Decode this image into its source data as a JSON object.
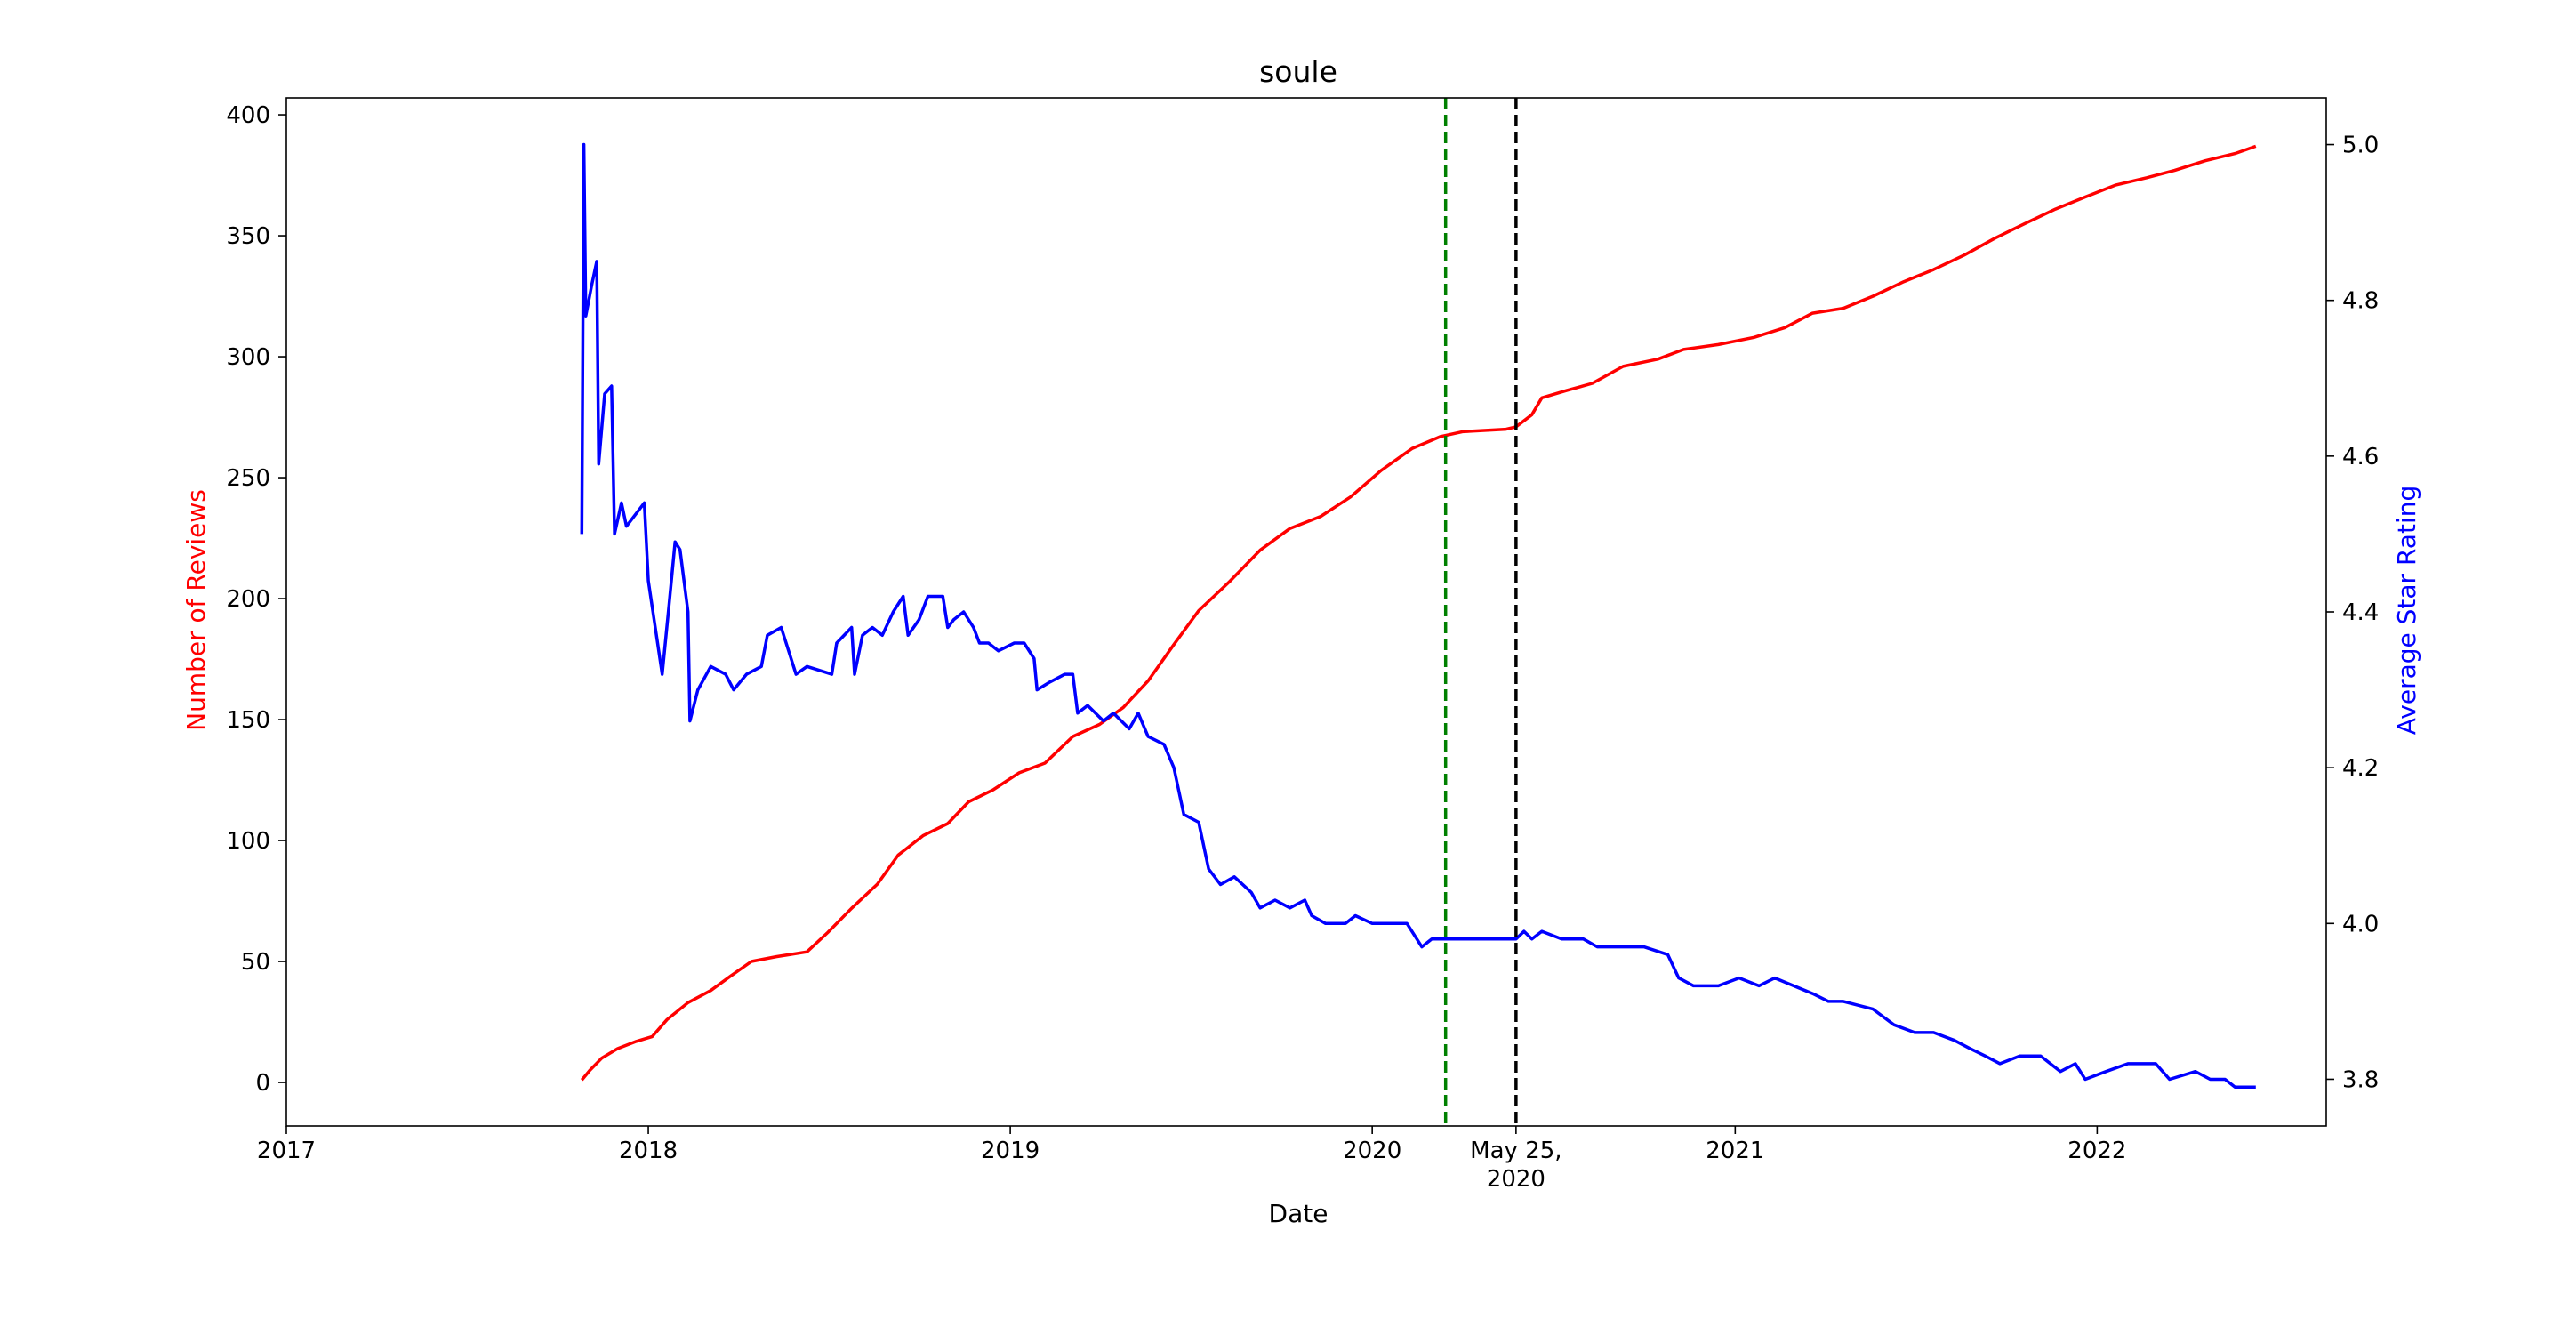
{
  "chart_data": {
    "type": "line",
    "title": "soule",
    "xlabel": "Date",
    "ylabel_left": "Number of Reviews",
    "ylabel_right": "Average Star Rating",
    "xlim": [
      "2017-01-01",
      "2022-08-20"
    ],
    "ylim_left": [
      -18,
      407
    ],
    "ylim_right": [
      3.74,
      5.06
    ],
    "x_ticks": [
      {
        "date": "2017-01-01",
        "label": "2017"
      },
      {
        "date": "2018-01-01",
        "label": "2018"
      },
      {
        "date": "2019-01-01",
        "label": "2019"
      },
      {
        "date": "2020-01-01",
        "label": "2020"
      },
      {
        "date": "2020-05-25",
        "label": "May 25,\n2020"
      },
      {
        "date": "2021-01-01",
        "label": "2021"
      },
      {
        "date": "2022-01-01",
        "label": "2022"
      }
    ],
    "y_ticks_left": [
      0,
      50,
      100,
      150,
      200,
      250,
      300,
      350,
      400
    ],
    "y_ticks_right": [
      3.8,
      4.0,
      4.2,
      4.4,
      4.6,
      4.8,
      5.0
    ],
    "grid": false,
    "legend": "none",
    "vlines": [
      {
        "date": "2020-03-15",
        "color": "#008000",
        "style": "dashed"
      },
      {
        "date": "2020-05-25",
        "color": "#000000",
        "style": "dashed"
      }
    ],
    "series": [
      {
        "axis": "left",
        "color": "#ff0000",
        "points": [
          [
            "2017-10-26",
            1
          ],
          [
            "2017-11-03",
            5
          ],
          [
            "2017-11-15",
            10
          ],
          [
            "2017-12-01",
            14
          ],
          [
            "2017-12-20",
            17
          ],
          [
            "2018-01-05",
            19
          ],
          [
            "2018-01-20",
            26
          ],
          [
            "2018-02-10",
            33
          ],
          [
            "2018-03-05",
            38
          ],
          [
            "2018-03-25",
            44
          ],
          [
            "2018-04-15",
            50
          ],
          [
            "2018-05-10",
            52
          ],
          [
            "2018-06-10",
            54
          ],
          [
            "2018-07-01",
            62
          ],
          [
            "2018-07-25",
            72
          ],
          [
            "2018-08-20",
            82
          ],
          [
            "2018-09-10",
            94
          ],
          [
            "2018-10-05",
            102
          ],
          [
            "2018-10-30",
            107
          ],
          [
            "2018-11-20",
            116
          ],
          [
            "2018-12-15",
            121
          ],
          [
            "2019-01-10",
            128
          ],
          [
            "2019-02-05",
            132
          ],
          [
            "2019-03-05",
            143
          ],
          [
            "2019-04-01",
            148
          ],
          [
            "2019-04-25",
            155
          ],
          [
            "2019-05-20",
            166
          ],
          [
            "2019-06-15",
            181
          ],
          [
            "2019-07-10",
            195
          ],
          [
            "2019-08-10",
            207
          ],
          [
            "2019-09-10",
            220
          ],
          [
            "2019-10-10",
            229
          ],
          [
            "2019-11-10",
            234
          ],
          [
            "2019-12-10",
            242
          ],
          [
            "2020-01-10",
            253
          ],
          [
            "2020-02-10",
            262
          ],
          [
            "2020-03-10",
            267
          ],
          [
            "2020-04-01",
            269
          ],
          [
            "2020-05-15",
            270
          ],
          [
            "2020-05-25",
            271
          ],
          [
            "2020-06-10",
            276
          ],
          [
            "2020-06-20",
            283
          ],
          [
            "2020-07-15",
            286
          ],
          [
            "2020-08-10",
            289
          ],
          [
            "2020-09-10",
            296
          ],
          [
            "2020-10-15",
            299
          ],
          [
            "2020-11-10",
            303
          ],
          [
            "2020-12-15",
            305
          ],
          [
            "2021-01-20",
            308
          ],
          [
            "2021-02-20",
            312
          ],
          [
            "2021-03-20",
            318
          ],
          [
            "2021-04-20",
            320
          ],
          [
            "2021-05-20",
            325
          ],
          [
            "2021-06-20",
            331
          ],
          [
            "2021-07-20",
            336
          ],
          [
            "2021-08-20",
            342
          ],
          [
            "2021-09-20",
            349
          ],
          [
            "2021-10-20",
            355
          ],
          [
            "2021-11-20",
            361
          ],
          [
            "2021-12-20",
            366
          ],
          [
            "2022-01-20",
            371
          ],
          [
            "2022-02-20",
            374
          ],
          [
            "2022-03-20",
            377
          ],
          [
            "2022-04-20",
            381
          ],
          [
            "2022-05-20",
            384
          ],
          [
            "2022-06-10",
            387
          ]
        ]
      },
      {
        "axis": "right",
        "color": "#0000ff",
        "points": [
          [
            "2017-10-26",
            4.5
          ],
          [
            "2017-10-28",
            5.0
          ],
          [
            "2017-10-30",
            4.78
          ],
          [
            "2017-11-05",
            4.82
          ],
          [
            "2017-11-10",
            4.85
          ],
          [
            "2017-11-12",
            4.59
          ],
          [
            "2017-11-18",
            4.68
          ],
          [
            "2017-11-25",
            4.69
          ],
          [
            "2017-11-28",
            4.5
          ],
          [
            "2017-12-05",
            4.54
          ],
          [
            "2017-12-10",
            4.51
          ],
          [
            "2017-12-28",
            4.54
          ],
          [
            "2018-01-01",
            4.44
          ],
          [
            "2018-01-15",
            4.32
          ],
          [
            "2018-01-22",
            4.41
          ],
          [
            "2018-01-28",
            4.49
          ],
          [
            "2018-02-02",
            4.48
          ],
          [
            "2018-02-10",
            4.4
          ],
          [
            "2018-02-12",
            4.26
          ],
          [
            "2018-02-20",
            4.3
          ],
          [
            "2018-03-05",
            4.33
          ],
          [
            "2018-03-20",
            4.32
          ],
          [
            "2018-03-28",
            4.3
          ],
          [
            "2018-04-10",
            4.32
          ],
          [
            "2018-04-25",
            4.33
          ],
          [
            "2018-05-01",
            4.37
          ],
          [
            "2018-05-15",
            4.38
          ],
          [
            "2018-05-30",
            4.32
          ],
          [
            "2018-06-10",
            4.33
          ],
          [
            "2018-07-05",
            4.32
          ],
          [
            "2018-07-10",
            4.36
          ],
          [
            "2018-07-25",
            4.38
          ],
          [
            "2018-07-28",
            4.32
          ],
          [
            "2018-08-05",
            4.37
          ],
          [
            "2018-08-15",
            4.38
          ],
          [
            "2018-08-25",
            4.37
          ],
          [
            "2018-09-05",
            4.4
          ],
          [
            "2018-09-15",
            4.42
          ],
          [
            "2018-09-20",
            4.37
          ],
          [
            "2018-10-01",
            4.39
          ],
          [
            "2018-10-10",
            4.42
          ],
          [
            "2018-10-25",
            4.42
          ],
          [
            "2018-10-30",
            4.38
          ],
          [
            "2018-11-05",
            4.39
          ],
          [
            "2018-11-15",
            4.4
          ],
          [
            "2018-11-25",
            4.38
          ],
          [
            "2018-12-01",
            4.36
          ],
          [
            "2018-12-10",
            4.36
          ],
          [
            "2018-12-20",
            4.35
          ],
          [
            "2019-01-05",
            4.36
          ],
          [
            "2019-01-15",
            4.36
          ],
          [
            "2019-01-25",
            4.34
          ],
          [
            "2019-01-28",
            4.3
          ],
          [
            "2019-02-10",
            4.31
          ],
          [
            "2019-02-25",
            4.32
          ],
          [
            "2019-03-05",
            4.32
          ],
          [
            "2019-03-10",
            4.27
          ],
          [
            "2019-03-20",
            4.28
          ],
          [
            "2019-04-05",
            4.26
          ],
          [
            "2019-04-15",
            4.27
          ],
          [
            "2019-05-01",
            4.25
          ],
          [
            "2019-05-10",
            4.27
          ],
          [
            "2019-05-20",
            4.24
          ],
          [
            "2019-06-05",
            4.23
          ],
          [
            "2019-06-15",
            4.2
          ],
          [
            "2019-06-25",
            4.14
          ],
          [
            "2019-07-10",
            4.13
          ],
          [
            "2019-07-20",
            4.07
          ],
          [
            "2019-08-01",
            4.05
          ],
          [
            "2019-08-15",
            4.06
          ],
          [
            "2019-09-01",
            4.04
          ],
          [
            "2019-09-10",
            4.02
          ],
          [
            "2019-09-25",
            4.03
          ],
          [
            "2019-10-10",
            4.02
          ],
          [
            "2019-10-25",
            4.03
          ],
          [
            "2019-11-01",
            4.01
          ],
          [
            "2019-11-15",
            4.0
          ],
          [
            "2019-12-05",
            4.0
          ],
          [
            "2019-12-15",
            4.01
          ],
          [
            "2020-01-01",
            4.0
          ],
          [
            "2020-01-15",
            4.0
          ],
          [
            "2020-02-05",
            4.0
          ],
          [
            "2020-02-20",
            3.97
          ],
          [
            "2020-03-01",
            3.98
          ],
          [
            "2020-03-10",
            3.98
          ],
          [
            "2020-03-20",
            3.98
          ],
          [
            "2020-04-20",
            3.98
          ],
          [
            "2020-05-25",
            3.98
          ],
          [
            "2020-06-02",
            3.99
          ],
          [
            "2020-06-10",
            3.98
          ],
          [
            "2020-06-20",
            3.99
          ],
          [
            "2020-07-10",
            3.98
          ],
          [
            "2020-08-01",
            3.98
          ],
          [
            "2020-08-15",
            3.97
          ],
          [
            "2020-10-01",
            3.97
          ],
          [
            "2020-10-25",
            3.96
          ],
          [
            "2020-11-05",
            3.93
          ],
          [
            "2020-11-20",
            3.92
          ],
          [
            "2020-12-15",
            3.92
          ],
          [
            "2021-01-05",
            3.93
          ],
          [
            "2021-01-25",
            3.92
          ],
          [
            "2021-02-10",
            3.93
          ],
          [
            "2021-03-01",
            3.92
          ],
          [
            "2021-03-20",
            3.91
          ],
          [
            "2021-04-05",
            3.9
          ],
          [
            "2021-04-20",
            3.9
          ],
          [
            "2021-05-20",
            3.89
          ],
          [
            "2021-06-10",
            3.87
          ],
          [
            "2021-07-01",
            3.86
          ],
          [
            "2021-07-20",
            3.86
          ],
          [
            "2021-08-10",
            3.85
          ],
          [
            "2021-08-25",
            3.84
          ],
          [
            "2021-09-10",
            3.83
          ],
          [
            "2021-09-25",
            3.82
          ],
          [
            "2021-10-15",
            3.83
          ],
          [
            "2021-11-05",
            3.83
          ],
          [
            "2021-11-25",
            3.81
          ],
          [
            "2021-12-10",
            3.82
          ],
          [
            "2021-12-20",
            3.8
          ],
          [
            "2022-01-10",
            3.81
          ],
          [
            "2022-02-01",
            3.82
          ],
          [
            "2022-03-01",
            3.82
          ],
          [
            "2022-03-15",
            3.8
          ],
          [
            "2022-04-10",
            3.81
          ],
          [
            "2022-04-25",
            3.8
          ],
          [
            "2022-05-10",
            3.8
          ],
          [
            "2022-05-20",
            3.79
          ],
          [
            "2022-06-01",
            3.79
          ],
          [
            "2022-06-10",
            3.79
          ]
        ]
      }
    ]
  }
}
